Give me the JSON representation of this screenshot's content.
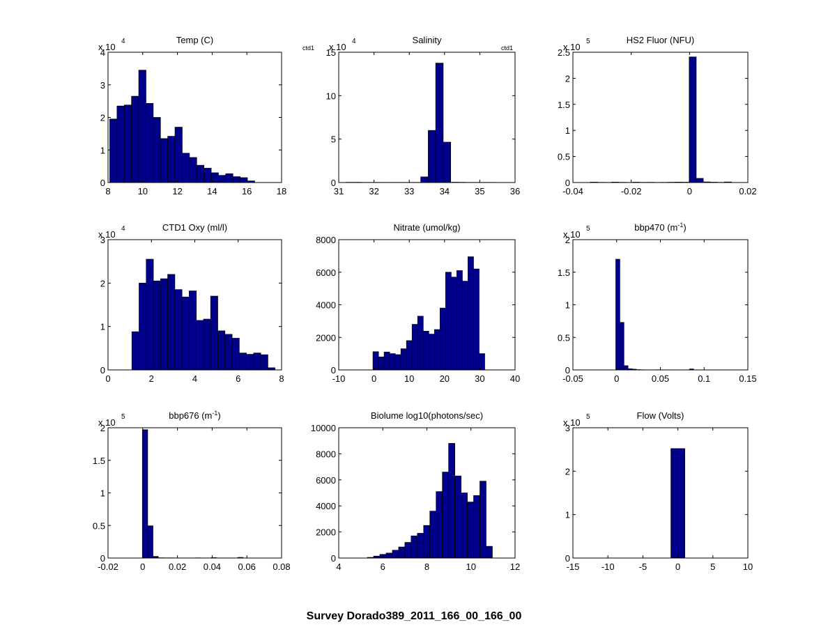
{
  "figure": {
    "title": "Survey Dorado389_2011_166_00_166_00",
    "bar_fill": "#00008b",
    "bar_edge": "#000000",
    "background": "#ffffff"
  },
  "chart_data": [
    {
      "type": "bar",
      "title": "Temp (C)",
      "title_sup": "",
      "exponent_label": "x 10",
      "exponent": "4",
      "side_labels": [],
      "xlim": [
        8,
        18
      ],
      "ylim": [
        0,
        40000
      ],
      "xticks": [
        "8",
        "10",
        "12",
        "14",
        "16",
        "18"
      ],
      "yticks": [
        "0",
        "1",
        "2",
        "3",
        "4"
      ],
      "bin_edges_range": [
        8.1,
        16.45
      ],
      "values": [
        19500,
        23500,
        23800,
        26500,
        34500,
        24300,
        20000,
        13500,
        14200,
        17000,
        9000,
        7700,
        5300,
        4400,
        3000,
        2200,
        2700,
        1800,
        1500,
        500
      ]
    },
    {
      "type": "bar",
      "title": "Salinity",
      "title_sup": "",
      "exponent_label": "x 10",
      "exponent": "4",
      "side_labels": [
        "ctd1",
        "ctd1"
      ],
      "xlim": [
        31,
        36
      ],
      "ylim": [
        0,
        150000
      ],
      "xticks": [
        "31",
        "32",
        "33",
        "34",
        "35",
        "36"
      ],
      "yticks": [
        "0",
        "5",
        "10",
        "15"
      ],
      "bin_edges_range": [
        31.2,
        35.45
      ],
      "values": [
        300,
        300,
        200,
        200,
        200,
        200,
        200,
        200,
        200,
        200,
        6500,
        60000,
        137500,
        46500,
        400,
        300,
        200,
        200,
        200,
        200
      ]
    },
    {
      "type": "bar",
      "title": "HS2 Fluor (NFU)",
      "title_sup": "",
      "exponent_label": "x 10",
      "exponent": "5",
      "side_labels": [],
      "xlim": [
        -0.04,
        0.02
      ],
      "ylim": [
        0,
        250000
      ],
      "xticks": [
        "-0.04",
        "-0.02",
        "0",
        "0.02"
      ],
      "yticks": [
        "0",
        "0.5",
        "1",
        "1.5",
        "2",
        "2.5"
      ],
      "bin_edges_range": [
        -0.034,
        0.0144
      ],
      "values": [
        800,
        400,
        300,
        800,
        500,
        300,
        700,
        400,
        500,
        300,
        400,
        600,
        800,
        700,
        241000,
        8000,
        1200,
        700,
        400,
        1100
      ]
    },
    {
      "type": "bar",
      "title": "CTD1 Oxy (ml/l)",
      "title_sup": "",
      "exponent_label": "x 10",
      "exponent": "4",
      "side_labels": [],
      "xlim": [
        0,
        8
      ],
      "ylim": [
        0,
        30000
      ],
      "xticks": [
        "0",
        "2",
        "4",
        "6",
        "8"
      ],
      "yticks": [
        "0",
        "1",
        "2",
        "3"
      ],
      "bin_edges_range": [
        1.1,
        7.7
      ],
      "values": [
        8800,
        20000,
        25500,
        20500,
        21000,
        22000,
        18500,
        16800,
        18200,
        11400,
        11700,
        17000,
        9000,
        8200,
        7300,
        3900,
        3600,
        3900,
        3500,
        500
      ]
    },
    {
      "type": "bar",
      "title": "Nitrate (umol/kg)",
      "title_sup": "",
      "exponent_label": "",
      "exponent": "",
      "side_labels": [],
      "xlim": [
        -10,
        40
      ],
      "ylim": [
        0,
        8000
      ],
      "xticks": [
        "-10",
        "0",
        "10",
        "20",
        "30",
        "40"
      ],
      "yticks": [
        "0",
        "2000",
        "4000",
        "6000",
        "8000"
      ],
      "bin_edges_range": [
        -0.3,
        31.4
      ],
      "values": [
        1120,
        800,
        1100,
        1000,
        940,
        1300,
        1800,
        2800,
        3300,
        2380,
        2200,
        2480,
        3800,
        6000,
        5700,
        6100,
        5450,
        6950,
        6200,
        1000
      ]
    },
    {
      "type": "bar",
      "title": "bbp470 (m",
      "title_sup": "-1",
      "title_suffix": ")",
      "exponent_label": "x 10",
      "exponent": "5",
      "side_labels": [],
      "xlim": [
        -0.05,
        0.15
      ],
      "ylim": [
        0,
        200000
      ],
      "xticks": [
        "-0.05",
        "0",
        "0.05",
        "0.1",
        "0.15"
      ],
      "yticks": [
        "0",
        "0.5",
        "1",
        "1.5",
        "2"
      ],
      "bin_edges_range": [
        -0.001,
        0.0927
      ],
      "values": [
        170000,
        73000,
        6500,
        1800,
        1200,
        500,
        300,
        200,
        200,
        200,
        300,
        200,
        200,
        200,
        100,
        100,
        100,
        200,
        1500,
        200
      ]
    },
    {
      "type": "bar",
      "title": "bbp676 (m",
      "title_sup": "-1",
      "title_suffix": ")",
      "exponent_label": "x 10",
      "exponent": "5",
      "side_labels": [],
      "xlim": [
        -0.02,
        0.08
      ],
      "ylim": [
        0,
        200000
      ],
      "xticks": [
        "-0.02",
        "0",
        "0.02",
        "0.04",
        "0.06",
        "0.08"
      ],
      "yticks": [
        "0",
        "0.5",
        "1",
        "1.5",
        "2"
      ],
      "bin_edges_range": [
        -0.0002,
        0.0608
      ],
      "values": [
        197000,
        49500,
        2500,
        400,
        300,
        300,
        200,
        200,
        200,
        200,
        300,
        200,
        200,
        600,
        200,
        200,
        200,
        200,
        1000,
        200
      ]
    },
    {
      "type": "bar",
      "title": "Biolume log10(photons/sec)",
      "title_sup": "",
      "exponent_label": "",
      "exponent": "",
      "side_labels": [],
      "xlim": [
        4,
        12
      ],
      "ylim": [
        0,
        10000
      ],
      "xticks": [
        "4",
        "6",
        "8",
        "10",
        "12"
      ],
      "yticks": [
        "0",
        "2000",
        "4000",
        "6000",
        "8000",
        "10000"
      ],
      "bin_edges_range": [
        5.3,
        10.97
      ],
      "values": [
        50,
        150,
        280,
        380,
        600,
        850,
        1200,
        1700,
        1900,
        2500,
        3600,
        5100,
        6600,
        8800,
        6300,
        5000,
        4300,
        4800,
        5900,
        900
      ]
    },
    {
      "type": "bar",
      "title": "Flow (Volts)",
      "title_sup": "",
      "exponent_label": "x 10",
      "exponent": "5",
      "side_labels": [],
      "xlim": [
        -15,
        10
      ],
      "ylim": [
        0,
        300000
      ],
      "xticks": [
        "-15",
        "-10",
        "-5",
        "0",
        "5",
        "10"
      ],
      "yticks": [
        "0",
        "1",
        "2",
        "3"
      ],
      "bin_edges_range": [
        -1.0,
        1.0
      ],
      "values": [
        252000
      ]
    }
  ]
}
